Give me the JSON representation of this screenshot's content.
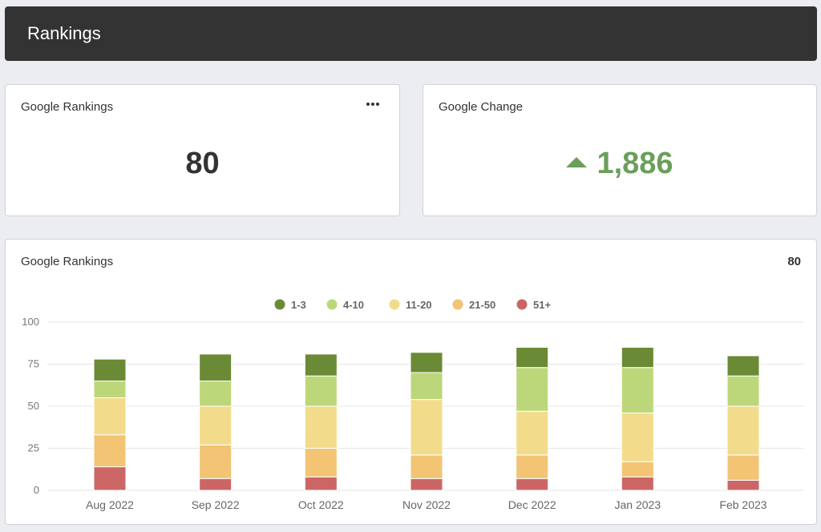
{
  "header": {
    "title": "Rankings"
  },
  "cards": {
    "rankings": {
      "title": "Google Rankings",
      "value": "80"
    },
    "change": {
      "title": "Google Change",
      "value": "1,886",
      "color": "#6b9f5b"
    },
    "chart": {
      "title": "Google Rankings",
      "total": "80"
    }
  },
  "chart_data": {
    "type": "bar",
    "stacked": true,
    "categories": [
      "Aug 2022",
      "Sep 2022",
      "Oct 2022",
      "Nov 2022",
      "Dec 2022",
      "Jan 2023",
      "Feb 2023"
    ],
    "series": [
      {
        "name": "51+",
        "color": "#cc6666",
        "values": [
          14,
          7,
          8,
          7,
          7,
          8,
          6
        ]
      },
      {
        "name": "21-50",
        "color": "#f2c473",
        "values": [
          19,
          20,
          17,
          14,
          14,
          9,
          15
        ]
      },
      {
        "name": "11-20",
        "color": "#f2dc8c",
        "values": [
          22,
          23,
          25,
          33,
          26,
          29,
          29
        ]
      },
      {
        "name": "4-10",
        "color": "#bcd77a",
        "values": [
          10,
          15,
          18,
          16,
          26,
          27,
          18
        ]
      },
      {
        "name": "1-3",
        "color": "#6b8a35",
        "values": [
          13,
          16,
          13,
          12,
          12,
          12,
          12
        ]
      }
    ],
    "legend_order": [
      "1-3",
      "4-10",
      "11-20",
      "21-50",
      "51+"
    ],
    "ylim": [
      0,
      100
    ],
    "yticks": [
      0,
      25,
      50,
      75,
      100
    ],
    "grid": true,
    "legend_position": "top-center"
  }
}
